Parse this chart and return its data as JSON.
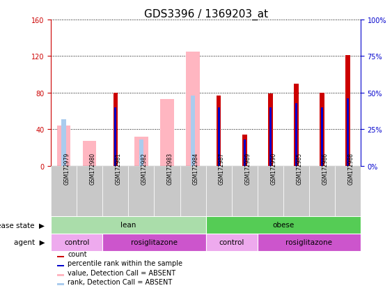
{
  "title": "GDS3396 / 1369203_at",
  "samples": [
    "GSM172979",
    "GSM172980",
    "GSM172981",
    "GSM172982",
    "GSM172983",
    "GSM172984",
    "GSM172987",
    "GSM172989",
    "GSM172990",
    "GSM172985",
    "GSM172986",
    "GSM172988"
  ],
  "red_bars": [
    0,
    0,
    80,
    0,
    0,
    0,
    77,
    34,
    79,
    90,
    80,
    121
  ],
  "blue_bars": [
    0,
    0,
    40,
    0,
    0,
    0,
    40,
    18,
    40,
    43,
    40,
    46
  ],
  "pink_bars": [
    44,
    27,
    0,
    32,
    73,
    125,
    0,
    0,
    0,
    0,
    0,
    0
  ],
  "lightblue_bars": [
    32,
    0,
    0,
    18,
    0,
    48,
    0,
    0,
    0,
    0,
    0,
    0
  ],
  "ylim_left": [
    0,
    160
  ],
  "ylim_right": [
    0,
    100
  ],
  "yticks_left": [
    0,
    40,
    80,
    120,
    160
  ],
  "yticks_right": [
    0,
    25,
    50,
    75,
    100
  ],
  "ytick_labels_right": [
    "0%",
    "25%",
    "50%",
    "75%",
    "100%"
  ],
  "left_axis_color": "#cc0000",
  "right_axis_color": "#0000cc",
  "disease_state_groups": [
    {
      "label": "lean",
      "start": 0,
      "end": 6,
      "color": "#aaddaa"
    },
    {
      "label": "obese",
      "start": 6,
      "end": 12,
      "color": "#55cc55"
    }
  ],
  "agent_groups": [
    {
      "label": "control",
      "start": 0,
      "end": 2,
      "color": "#eeaaee"
    },
    {
      "label": "rosiglitazone",
      "start": 2,
      "end": 6,
      "color": "#cc55cc"
    },
    {
      "label": "control",
      "start": 6,
      "end": 8,
      "color": "#eeaaee"
    },
    {
      "label": "rosiglitazone",
      "start": 8,
      "end": 12,
      "color": "#cc55cc"
    }
  ],
  "red_color": "#cc0000",
  "blue_color": "#0000cc",
  "pink_color": "#ffb6c1",
  "lightblue_color": "#aaccee",
  "grid_color": "black",
  "background_color": "white",
  "label_fontsize": 7.5,
  "tick_fontsize": 7,
  "title_fontsize": 11,
  "left_label": "disease state",
  "agent_label": "agent",
  "legend_items": [
    {
      "color": "#cc0000",
      "label": "count"
    },
    {
      "color": "#0000cc",
      "label": "percentile rank within the sample"
    },
    {
      "color": "#ffb6c1",
      "label": "value, Detection Call = ABSENT"
    },
    {
      "color": "#aaccee",
      "label": "rank, Detection Call = ABSENT"
    }
  ]
}
